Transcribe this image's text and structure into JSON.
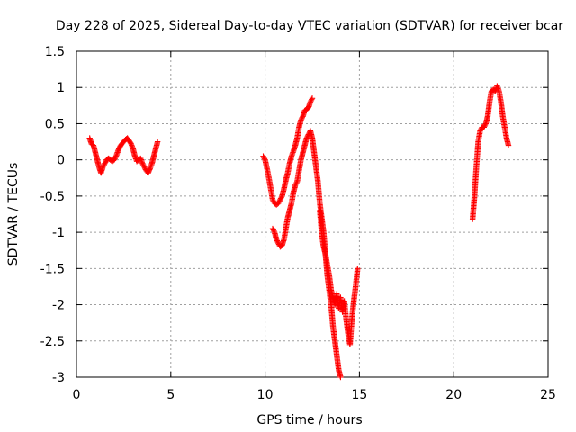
{
  "chart_data": {
    "type": "scatter",
    "title": "Day 228 of 2025, Sidereal Day-to-day VTEC variation (SDTVAR) for receiver bcar",
    "xlabel": "GPS time / hours",
    "ylabel": "SDTVAR / TECUs",
    "xlim": [
      0,
      25
    ],
    "ylim": [
      -3,
      1.5
    ],
    "xticks": [
      0,
      5,
      10,
      15,
      20,
      25
    ],
    "yticks": [
      1.5,
      1,
      0.5,
      0,
      -0.5,
      -1,
      -1.5,
      -2,
      -2.5,
      -3
    ],
    "xtick_labels": [
      "0",
      "5",
      "10",
      "15",
      "20",
      "25"
    ],
    "ytick_labels": [
      "1.5",
      "1",
      "0.5",
      "0",
      "-0.5",
      "-1",
      "-1.5",
      "-2",
      "-2.5",
      "-3"
    ],
    "grid": true,
    "marker": "+",
    "series": [
      {
        "name": "SDTVAR",
        "color": "#ff0000",
        "segments": [
          {
            "x": [
              0.7,
              0.8,
              0.9,
              1.0,
              1.1,
              1.2,
              1.3,
              1.4,
              1.5,
              1.6,
              1.7,
              1.8,
              1.9,
              2.0,
              2.1,
              2.2,
              2.3,
              2.4,
              2.5,
              2.6,
              2.7,
              2.8,
              2.9,
              3.0,
              3.1,
              3.2,
              3.3,
              3.4,
              3.5,
              3.6,
              3.7,
              3.8,
              3.9,
              4.0,
              4.1,
              4.2,
              4.3
            ],
            "y": [
              0.3,
              0.22,
              0.2,
              0.1,
              0.0,
              -0.1,
              -0.18,
              -0.1,
              -0.05,
              0.0,
              0.02,
              0.0,
              -0.02,
              0.0,
              0.05,
              0.12,
              0.18,
              0.22,
              0.25,
              0.28,
              0.3,
              0.26,
              0.22,
              0.15,
              0.05,
              -0.02,
              0.0,
              0.02,
              -0.05,
              -0.1,
              -0.15,
              -0.18,
              -0.12,
              -0.05,
              0.05,
              0.15,
              0.25
            ]
          },
          {
            "x": [
              9.9,
              10.0,
              10.1,
              10.2,
              10.3,
              10.4,
              10.5,
              10.6,
              10.7,
              10.8,
              10.9,
              11.0,
              11.1,
              11.2,
              11.3,
              11.4,
              11.5,
              11.6,
              11.7,
              11.8,
              11.9,
              12.0,
              12.1,
              12.2,
              12.3,
              12.4,
              12.5
            ],
            "y": [
              0.05,
              0.0,
              -0.12,
              -0.25,
              -0.4,
              -0.55,
              -0.6,
              -0.62,
              -0.6,
              -0.55,
              -0.5,
              -0.4,
              -0.28,
              -0.18,
              -0.05,
              0.05,
              0.12,
              0.2,
              0.3,
              0.45,
              0.55,
              0.6,
              0.68,
              0.7,
              0.72,
              0.8,
              0.85
            ]
          },
          {
            "x": [
              10.4,
              10.5,
              10.6,
              10.7,
              10.8,
              10.9,
              11.0,
              11.1,
              11.2,
              11.3,
              11.4,
              11.5,
              11.6,
              11.7,
              11.8,
              11.9,
              12.0,
              12.1,
              12.2,
              12.3,
              12.4,
              12.5,
              12.6,
              12.7,
              12.8,
              12.9,
              13.0,
              13.1,
              13.2,
              13.3,
              13.4,
              13.5,
              13.6,
              13.7,
              13.8,
              13.9,
              14.0
            ],
            "y": [
              -0.95,
              -1.0,
              -1.1,
              -1.15,
              -1.2,
              -1.18,
              -1.1,
              -0.95,
              -0.8,
              -0.7,
              -0.6,
              -0.45,
              -0.35,
              -0.3,
              -0.15,
              0.0,
              0.1,
              0.2,
              0.3,
              0.35,
              0.4,
              0.3,
              0.1,
              -0.1,
              -0.3,
              -0.6,
              -0.8,
              -1.0,
              -1.3,
              -1.6,
              -1.8,
              -2.0,
              -2.3,
              -2.5,
              -2.7,
              -2.9,
              -3.0
            ]
          },
          {
            "x": [
              12.9,
              13.0,
              13.1,
              13.2,
              13.3,
              13.4,
              13.5,
              13.6,
              13.7,
              13.8,
              13.9,
              14.0,
              14.1,
              14.2,
              14.3,
              14.4,
              14.5,
              14.6,
              14.7,
              14.8,
              14.9
            ],
            "y": [
              -0.7,
              -1.0,
              -1.2,
              -1.3,
              -1.45,
              -1.6,
              -1.8,
              -1.9,
              -2.0,
              -1.85,
              -2.05,
              -1.9,
              -2.1,
              -1.95,
              -2.2,
              -2.4,
              -2.55,
              -2.2,
              -1.95,
              -1.75,
              -1.5
            ]
          },
          {
            "x": [
              21.0,
              21.1,
              21.2,
              21.3,
              21.4,
              21.5,
              21.6,
              21.7,
              21.8,
              21.9,
              22.0,
              22.1,
              22.2,
              22.3,
              22.4,
              22.5,
              22.6,
              22.7,
              22.8,
              22.9
            ],
            "y": [
              -0.82,
              -0.5,
              -0.1,
              0.25,
              0.4,
              0.45,
              0.45,
              0.5,
              0.6,
              0.8,
              0.95,
              0.97,
              0.95,
              1.02,
              0.95,
              0.8,
              0.6,
              0.45,
              0.3,
              0.2
            ]
          }
        ]
      }
    ]
  }
}
